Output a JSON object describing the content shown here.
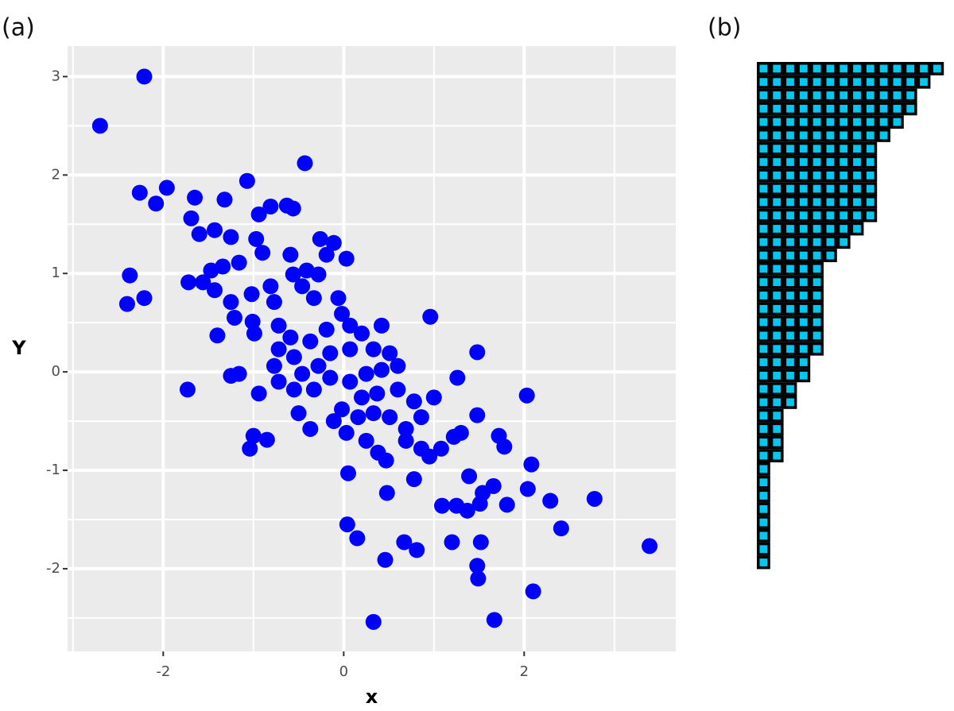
{
  "chart_data": [
    {
      "type": "scatter",
      "title": "(a)",
      "xlabel": "x",
      "ylabel": "Y",
      "color": "#0000ff",
      "grid": true,
      "xlim": [
        -3.06,
        3.68
      ],
      "ylim": [
        -2.84,
        3.31
      ],
      "xticks": [
        -2,
        0,
        2
      ],
      "yticks": [
        -2,
        -1,
        0,
        1,
        2,
        3
      ],
      "x": [
        -2.21,
        -2.7,
        -0.43,
        -1.07,
        -2.26,
        -1.96,
        -2.08,
        -1.65,
        -1.32,
        -2.37,
        -2.4,
        -2.21,
        -1.72,
        0.96,
        -1.4,
        1.48,
        -1.73,
        1.26,
        2.03,
        -1.25,
        -1.0,
        -0.85,
        -1.04,
        1.48,
        1.72,
        1.78,
        2.08,
        2.04,
        2.29,
        2.78,
        2.41,
        3.39,
        0.05,
        0.48,
        0.78,
        0.04,
        0.15,
        0.46,
        0.67,
        0.81,
        1.2,
        1.52,
        1.48,
        1.49,
        2.1,
        1.67,
        0.33,
        1.09,
        1.25,
        1.37,
        1.39,
        1.54,
        1.66,
        1.81,
        1.51,
        -1.69,
        -1.6,
        -1.43,
        -1.25,
        -0.94,
        -0.81,
        -0.63,
        -0.56,
        -0.97,
        -0.9,
        -1.16,
        -1.47,
        -1.43,
        -1.25,
        -1.21,
        -1.01,
        -1.02,
        -0.81,
        -0.77,
        -0.59,
        -0.56,
        -0.46,
        -0.41,
        -0.26,
        -0.19,
        -0.11,
        0.03,
        -0.28,
        -0.33,
        -0.06,
        -0.02,
        -0.72,
        -0.59,
        -0.72,
        -0.55,
        -0.37,
        -0.19,
        0.07,
        0.2,
        0.42,
        0.33,
        0.51,
        0.07,
        -0.15,
        -0.28,
        -0.46,
        -0.77,
        -0.72,
        -0.55,
        -0.33,
        -0.15,
        0.07,
        0.25,
        0.42,
        0.6,
        0.2,
        0.37,
        0.6,
        0.78,
        1.0,
        -0.02,
        0.16,
        0.33,
        0.51,
        0.69,
        0.86,
        -0.11,
        0.03,
        0.25,
        0.38,
        0.47,
        0.69,
        0.86,
        0.95,
        1.08,
        1.22,
        1.3,
        -0.5,
        -0.37,
        -1.16,
        -0.94,
        -0.99,
        -1.34,
        -1.56
      ],
      "y": [
        3.0,
        2.5,
        2.12,
        1.94,
        1.82,
        1.87,
        1.71,
        1.77,
        1.75,
        0.98,
        0.69,
        0.75,
        0.91,
        0.56,
        0.37,
        0.2,
        -0.18,
        -0.06,
        -0.24,
        -0.04,
        -0.65,
        -0.69,
        -0.78,
        -0.44,
        -0.65,
        -0.76,
        -0.94,
        -1.19,
        -1.31,
        -1.29,
        -1.59,
        -1.77,
        -1.03,
        -1.23,
        -1.09,
        -1.55,
        -1.69,
        -1.91,
        -1.73,
        -1.81,
        -1.73,
        -1.73,
        -1.97,
        -2.1,
        -2.23,
        -2.52,
        -2.54,
        -1.36,
        -1.36,
        -1.41,
        -1.06,
        -1.23,
        -1.16,
        -1.35,
        -1.34,
        1.56,
        1.4,
        1.44,
        1.37,
        1.6,
        1.68,
        1.69,
        1.66,
        1.35,
        1.21,
        1.11,
        1.03,
        0.83,
        0.71,
        0.55,
        0.51,
        0.79,
        0.87,
        0.71,
        1.19,
        0.99,
        0.87,
        1.03,
        1.35,
        1.19,
        1.31,
        1.15,
        0.99,
        0.75,
        0.75,
        0.59,
        0.47,
        0.35,
        0.23,
        0.15,
        0.31,
        0.43,
        0.47,
        0.39,
        0.47,
        0.23,
        0.19,
        0.23,
        0.19,
        0.06,
        -0.02,
        0.06,
        -0.1,
        -0.18,
        -0.18,
        -0.06,
        -0.1,
        -0.02,
        0.02,
        0.06,
        -0.26,
        -0.22,
        -0.18,
        -0.3,
        -0.26,
        -0.38,
        -0.46,
        -0.42,
        -0.46,
        -0.58,
        -0.46,
        -0.5,
        -0.62,
        -0.7,
        -0.82,
        -0.9,
        -0.7,
        -0.78,
        -0.86,
        -0.78,
        -0.66,
        -0.62,
        -0.42,
        -0.58,
        -0.02,
        -0.22,
        0.39,
        1.07,
        0.91
      ]
    },
    {
      "type": "waffle",
      "title": "(b)",
      "color": "#00c8f0",
      "edgecolor": "#000000",
      "values": [
        14,
        13,
        12,
        12,
        11,
        10,
        9,
        9,
        9,
        9,
        9,
        9,
        8,
        7,
        6,
        5,
        5,
        5,
        5,
        5,
        5,
        5,
        4,
        4,
        3,
        3,
        2,
        2,
        2,
        2,
        1,
        1,
        1,
        1,
        1,
        1,
        1,
        1
      ]
    }
  ]
}
